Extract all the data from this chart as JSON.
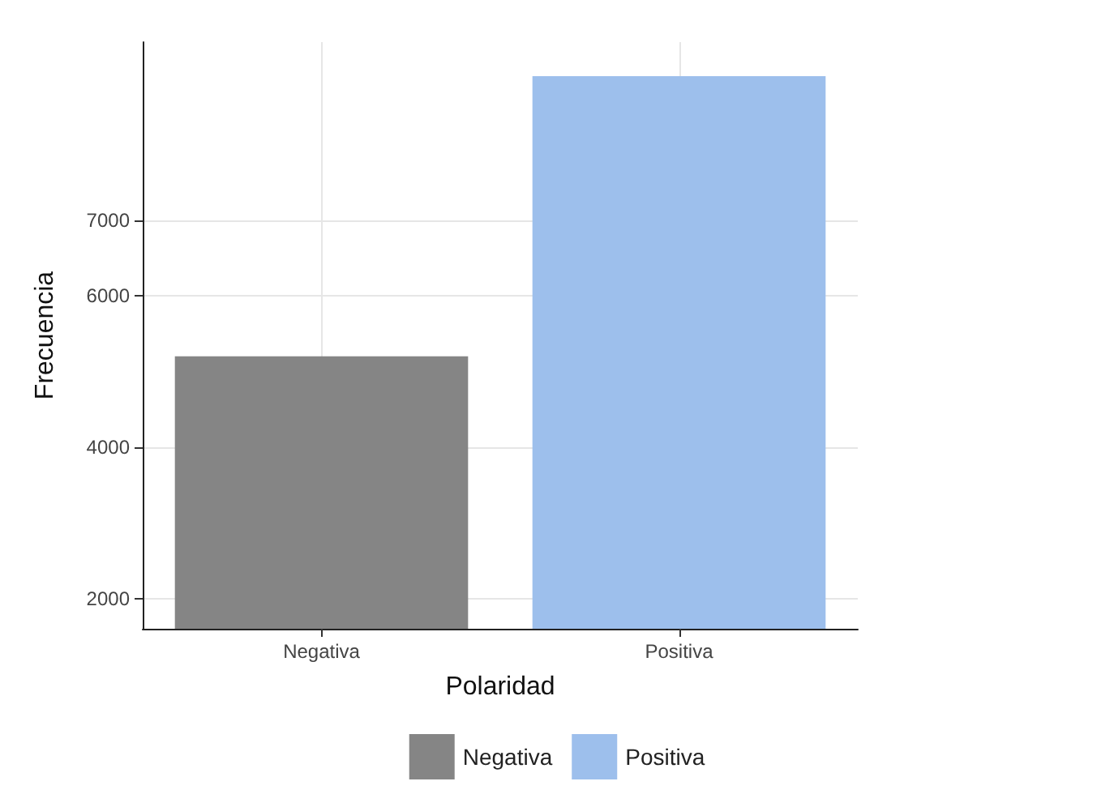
{
  "chart_data": {
    "type": "bar",
    "xlabel": "Polaridad",
    "ylabel": "Frecuencia",
    "categories": [
      "Negativa",
      "Positiva"
    ],
    "series": [
      {
        "name": "Negativa",
        "color": "#858585",
        "values": [
          5200,
          null
        ]
      },
      {
        "name": "Positiva",
        "color": "#9dbfec",
        "values": [
          null,
          8900
        ]
      }
    ],
    "ylim": [
      1600,
      9350
    ],
    "yticks": [
      2000,
      4000,
      6000,
      7000
    ],
    "grid": true,
    "legend": "bottom"
  }
}
